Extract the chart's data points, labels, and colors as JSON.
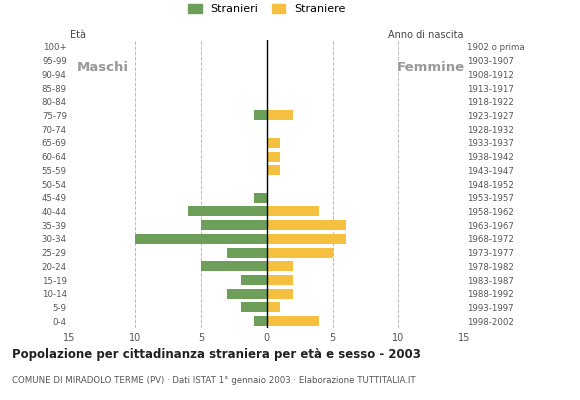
{
  "age_groups": [
    "100+",
    "95-99",
    "90-94",
    "85-89",
    "80-84",
    "75-79",
    "70-74",
    "65-69",
    "60-64",
    "55-59",
    "50-54",
    "45-49",
    "40-44",
    "35-39",
    "30-34",
    "25-29",
    "20-24",
    "15-19",
    "10-14",
    "5-9",
    "0-4"
  ],
  "birth_years": [
    "1902 o prima",
    "1903-1907",
    "1908-1912",
    "1913-1917",
    "1918-1922",
    "1923-1927",
    "1928-1932",
    "1933-1937",
    "1938-1942",
    "1943-1947",
    "1948-1952",
    "1953-1957",
    "1958-1962",
    "1963-1967",
    "1968-1972",
    "1973-1977",
    "1978-1982",
    "1983-1987",
    "1988-1992",
    "1993-1997",
    "1998-2002"
  ],
  "males": [
    0,
    0,
    0,
    0,
    0,
    1,
    0,
    0,
    0,
    0,
    0,
    1,
    6,
    5,
    10,
    3,
    5,
    2,
    3,
    2,
    1
  ],
  "females": [
    0,
    0,
    0,
    0,
    0,
    2,
    0,
    1,
    1,
    1,
    0,
    0,
    4,
    6,
    6,
    5,
    2,
    2,
    2,
    1,
    4
  ],
  "male_color": "#6d9e5a",
  "female_color": "#f5c040",
  "xlim": 15,
  "title": "Popolazione per cittadinanza straniera per età e sesso - 2003",
  "subtitle": "COMUNE DI MIRADOLO TERME (PV) · Dati ISTAT 1° gennaio 2003 · Elaborazione TUTTITALIA.IT",
  "ylabel_left": "Età",
  "ylabel_right": "Anno di nascita",
  "label_maschi": "Maschi",
  "label_femmine": "Femmine",
  "legend_stranieri": "Stranieri",
  "legend_straniere": "Straniere",
  "background_color": "#ffffff",
  "grid_color": "#bbbbbb"
}
